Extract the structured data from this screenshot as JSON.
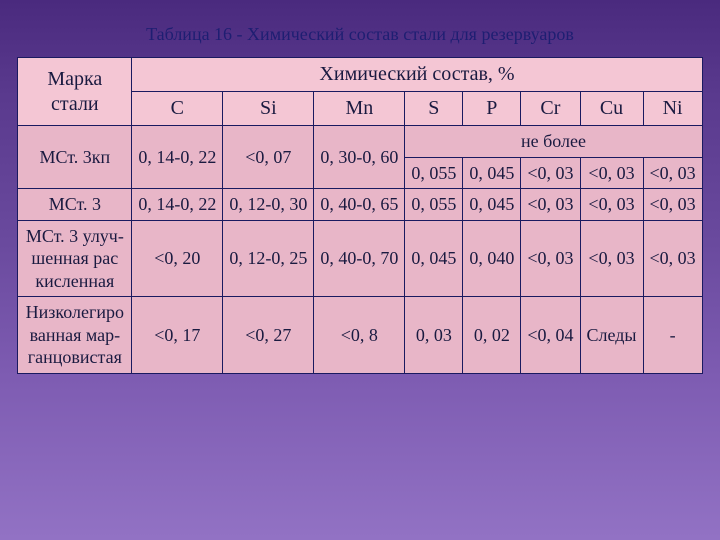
{
  "title": "Таблица 16 - Химический состав стали для резервуаров",
  "colors": {
    "header_bg": "#f4c6d4",
    "body_bg": "#e8b6c8",
    "border": "#1a1a60",
    "text": "#1a1a40",
    "title_text": "#1e1e72",
    "bg_top": "#4a2a7e",
    "bg_bottom": "#9272c4"
  },
  "table": {
    "row_label": "Марка стали",
    "main_header": "Химический состав, %",
    "columns": [
      "C",
      "Si",
      "Mn",
      "S",
      "P",
      "Cr",
      "Cu",
      "Ni"
    ],
    "sub_header": "не более",
    "rows": [
      {
        "name": "МСт. 3кп",
        "cells": [
          "0, 14-0, 22",
          "<0, 07",
          "0, 30-0, 60",
          "0, 055",
          "0, 045",
          "<0, 03",
          "<0, 03",
          "<0, 03"
        ]
      },
      {
        "name": "МСт. 3",
        "cells": [
          "0, 14-0, 22",
          "0, 12-0, 30",
          "0, 40-0, 65",
          "0, 055",
          "0, 045",
          "<0, 03",
          "<0, 03",
          "<0, 03"
        ]
      },
      {
        "name": "МСт. 3 улуч-шенная рас кисленная",
        "cells": [
          "<0, 20",
          "0, 12-0, 25",
          "0, 40-0, 70",
          "0, 045",
          "0, 040",
          "<0, 03",
          "<0, 03",
          "<0, 03"
        ]
      },
      {
        "name": "Низколегиро ванная мар-ганцовистая",
        "cells": [
          "<0, 17",
          "<0, 27",
          "<0, 8",
          "0, 03",
          "0, 02",
          "<0, 04",
          "Следы",
          "-"
        ]
      }
    ]
  }
}
